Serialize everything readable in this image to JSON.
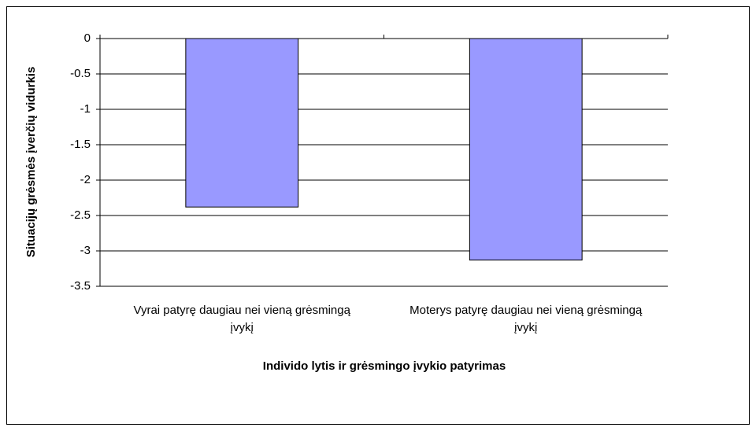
{
  "chart_data": {
    "type": "bar",
    "categories": [
      "Vyrai patyrę daugiau nei vieną grėsmingą įvykį",
      "Moterys patyrę daugiau nei vieną grėsmingą įvykį"
    ],
    "values": [
      -2.38,
      -3.13
    ],
    "color": "#9999ff",
    "ylim": [
      -3.5,
      0
    ],
    "yticks": [
      0,
      -0.5,
      -1,
      -1.5,
      -2,
      -2.5,
      -3,
      -3.5
    ],
    "grid": true,
    "ylabel": "Situacijų grėsmės įverčių vidurkis",
    "xlabel": "Individo lytis ir grėsmingo įvykio patyrimas"
  }
}
